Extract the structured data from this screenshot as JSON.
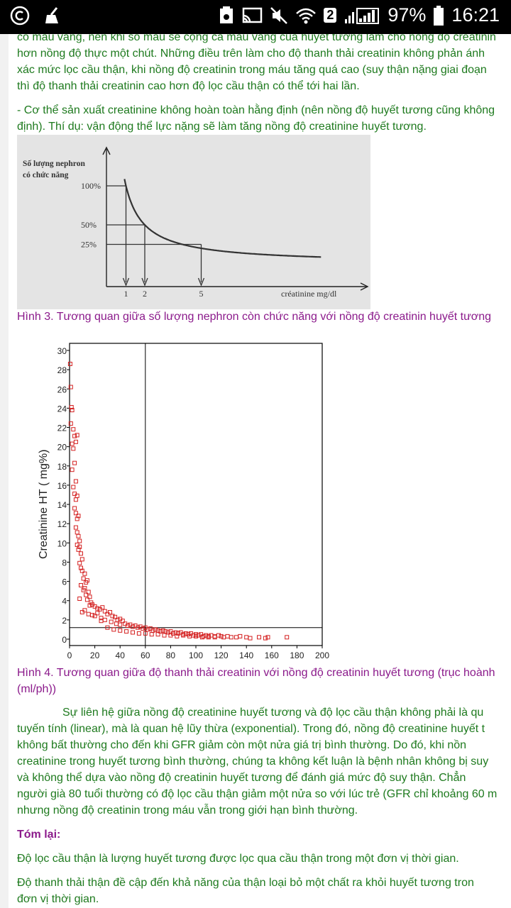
{
  "status_bar": {
    "battery": "97%",
    "time": "16:21",
    "sim_badge": "2"
  },
  "article": {
    "para1": [
      "có màu vàng, nên khi so màu sẽ cộng cả màu vàng của huyết tương làm cho nồng độ creatinin",
      "hơn nồng độ thực một chút. Những điều trên làm cho độ thanh thải creatinin không phản ánh",
      "xác mức lọc cầu thận, khi nồng độ creatinin trong máu tăng quá cao (suy thận nặng giai đoạn",
      "thì độ thanh thải creatinin cao hơn độ lọc cầu thận có thể tới hai lần."
    ],
    "para2": [
      "- Cơ thể sản xuất creatinine không hoàn toàn hằng định (nên nồng độ huyết tương cũng không",
      "định). Thí dụ: vận động thể lực nặng sẽ làm tăng nồng độ creatinine huyết tương."
    ],
    "caption3": "Hình 3. Tương quan giữa số lượng nephron còn chức năng với nồng độ creatinin huyết tương",
    "caption4": [
      "Hình 4. Tương quan giữa độ thanh thải creatinin với nồng độ creatinin huyết tương (trục hoành",
      "(ml/ph))"
    ],
    "para3": [
      "Sự liên hệ giữa nồng độ creatinine huyết tương và độ lọc cầu thận không phải là qu",
      "tuyến tính (linear), mà là quan hệ lũy thừa (exponential). Trong đó, nồng độ creatinine huyết t",
      "không bất thường cho đến khi GFR giảm còn một nửa giá trị bình thường. Do đó, khi nồn",
      "creatinine trong huyết tương bình thường, chúng ta không kết luận là bệnh nhân không bị suy",
      "và không thể dựa vào nồng độ creatinin huyết tương để đánh giá mức độ suy thận. Chẳn",
      "người già 80 tuổi thường có độ lọc cầu thận giảm một nửa so với lúc trẻ (GFR chỉ khoảng 60 m",
      "nhưng nồng độ creatinin trong máu vẫn trong giới hạn bình thường."
    ],
    "summary_title": "Tóm lại:",
    "summary1": "Độ lọc cầu thận là lượng huyết tương được lọc qua cầu thận trong một đơn vị thời gian.",
    "summary2": [
      "Độ thanh thải thận đề cập đến khả năng của thận loại bỏ một chất ra khỏi huyết tương tron",
      "đơn vị thời gian."
    ]
  },
  "chart_data": [
    {
      "type": "line",
      "title": "",
      "ylabel_lines": [
        "Số lượng nephron",
        "có chức năng"
      ],
      "xlabel": "créatinine mg/dl",
      "y_ticks": [
        "100%",
        "50%",
        "25%"
      ],
      "x_ticks": [
        "1",
        "2",
        "5"
      ],
      "series": [
        {
          "x": [
            1,
            2,
            5
          ],
          "y": [
            100,
            50,
            25
          ]
        }
      ],
      "colors": {
        "curve": "#333333",
        "background": "#e4e4e4"
      }
    },
    {
      "type": "scatter",
      "ylabel": "Creatinine HT ( mg%)",
      "xlabel": "",
      "xlim": [
        0,
        200
      ],
      "ylim": [
        0,
        30
      ],
      "x_ticks": [
        "0",
        "20",
        "40",
        "60",
        "80",
        "100",
        "120",
        "140",
        "160",
        "180",
        "200"
      ],
      "y_ticks": [
        "0",
        "2",
        "4",
        "6",
        "8",
        "10",
        "12",
        "14",
        "16",
        "18",
        "20",
        "22",
        "24",
        "26",
        "28",
        "30"
      ],
      "reference_lines": {
        "x": 60,
        "y": 1.2
      },
      "colors": {
        "points": "#d42020"
      },
      "points": [
        [
          0.5,
          28.6
        ],
        [
          1,
          26.2
        ],
        [
          1.5,
          24.1
        ],
        [
          2,
          23.8
        ],
        [
          1,
          22.4
        ],
        [
          3,
          21.8
        ],
        [
          2,
          20.3
        ],
        [
          4,
          21.1
        ],
        [
          5,
          20.5
        ],
        [
          3,
          19.8
        ],
        [
          6,
          21.2
        ],
        [
          4,
          18.3
        ],
        [
          2,
          17.6
        ],
        [
          5,
          16.4
        ],
        [
          3,
          15.8
        ],
        [
          4,
          15.1
        ],
        [
          5,
          14.5
        ],
        [
          6,
          14.9
        ],
        [
          4,
          13.6
        ],
        [
          5,
          13.1
        ],
        [
          6,
          12.5
        ],
        [
          7,
          12.8
        ],
        [
          5,
          11.6
        ],
        [
          6,
          11.1
        ],
        [
          7,
          10.7
        ],
        [
          8,
          10.2
        ],
        [
          6,
          9.8
        ],
        [
          7,
          9.3
        ],
        [
          8,
          9.6
        ],
        [
          9,
          8.9
        ],
        [
          10,
          8.3
        ],
        [
          8,
          7.9
        ],
        [
          9,
          7.4
        ],
        [
          10,
          7.1
        ],
        [
          12,
          6.8
        ],
        [
          11,
          6.3
        ],
        [
          13,
          5.9
        ],
        [
          14,
          6.1
        ],
        [
          12,
          5.3
        ],
        [
          15,
          4.9
        ],
        [
          16,
          4.4
        ],
        [
          14,
          4.1
        ],
        [
          17,
          3.8
        ],
        [
          18,
          3.6
        ],
        [
          20,
          3.4
        ],
        [
          22,
          3.2
        ],
        [
          24,
          3.1
        ],
        [
          26,
          3.3
        ],
        [
          28,
          2.9
        ],
        [
          30,
          2.6
        ],
        [
          32,
          2.8
        ],
        [
          34,
          2.4
        ],
        [
          36,
          2.3
        ],
        [
          38,
          2.0
        ],
        [
          40,
          2.1
        ],
        [
          42,
          1.9
        ],
        [
          18,
          2.5
        ],
        [
          22,
          2.7
        ],
        [
          25,
          2.2
        ],
        [
          28,
          2.0
        ],
        [
          33,
          1.8
        ],
        [
          37,
          1.6
        ],
        [
          40,
          1.5
        ],
        [
          44,
          1.6
        ],
        [
          46,
          1.4
        ],
        [
          48,
          1.5
        ],
        [
          50,
          1.3
        ],
        [
          52,
          1.4
        ],
        [
          54,
          1.2
        ],
        [
          56,
          1.3
        ],
        [
          58,
          1.1
        ],
        [
          60,
          1.2
        ],
        [
          62,
          1.0
        ],
        [
          64,
          1.1
        ],
        [
          66,
          0.9
        ],
        [
          68,
          1.0
        ],
        [
          70,
          0.9
        ],
        [
          72,
          0.8
        ],
        [
          74,
          0.9
        ],
        [
          76,
          0.8
        ],
        [
          78,
          0.7
        ],
        [
          80,
          0.8
        ],
        [
          82,
          0.6
        ],
        [
          84,
          0.7
        ],
        [
          86,
          0.6
        ],
        [
          88,
          0.7
        ],
        [
          90,
          0.5
        ],
        [
          92,
          0.6
        ],
        [
          94,
          0.5
        ],
        [
          96,
          0.6
        ],
        [
          98,
          0.4
        ],
        [
          100,
          0.5
        ],
        [
          102,
          0.4
        ],
        [
          104,
          0.5
        ],
        [
          106,
          0.3
        ],
        [
          108,
          0.4
        ],
        [
          110,
          0.3
        ],
        [
          112,
          0.4
        ],
        [
          115,
          0.3
        ],
        [
          118,
          0.4
        ],
        [
          120,
          0.3
        ],
        [
          122,
          0.2
        ],
        [
          125,
          0.3
        ],
        [
          128,
          0.2
        ],
        [
          132,
          0.2
        ],
        [
          135,
          0.3
        ],
        [
          140,
          0.2
        ],
        [
          143,
          0.1
        ],
        [
          150,
          0.2
        ],
        [
          155,
          0.1
        ],
        [
          157,
          0.2
        ],
        [
          172,
          0.2
        ],
        [
          45,
          0.8
        ],
        [
          55,
          0.6
        ],
        [
          65,
          0.5
        ],
        [
          75,
          0.4
        ],
        [
          85,
          0.3
        ],
        [
          95,
          0.3
        ],
        [
          105,
          0.2
        ],
        [
          115,
          0.2
        ],
        [
          30,
          1.2
        ],
        [
          35,
          1.0
        ],
        [
          40,
          0.9
        ],
        [
          50,
          0.7
        ],
        [
          60,
          0.6
        ],
        [
          70,
          0.5
        ],
        [
          80,
          0.4
        ],
        [
          90,
          0.4
        ],
        [
          100,
          0.3
        ],
        [
          110,
          0.2
        ],
        [
          10,
          2.8
        ],
        [
          12,
          3.0
        ],
        [
          15,
          2.6
        ],
        [
          20,
          2.4
        ],
        [
          25,
          1.9
        ],
        [
          8,
          4.2
        ],
        [
          9,
          5.6
        ],
        [
          11,
          5.1
        ],
        [
          13,
          4.6
        ],
        [
          16,
          3.5
        ]
      ]
    }
  ]
}
